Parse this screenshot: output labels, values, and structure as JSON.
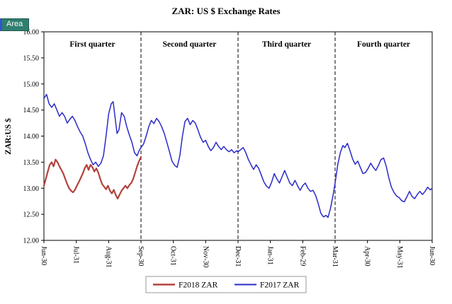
{
  "toolbar": {
    "area_label": "Area"
  },
  "chart_data": {
    "type": "line",
    "title": "ZAR:  US $ Exchange  Rates",
    "ylabel": "ZAR:US  $",
    "xlabel": "",
    "ylim": [
      12.0,
      16.0
    ],
    "xlim": [
      0,
      12
    ],
    "grid": false,
    "legend_position": "bottom-center",
    "y_tick_labels": [
      "12.00",
      "12.50",
      "13.00",
      "13.50",
      "14.00",
      "14.50",
      "15.00",
      "15.50",
      "16.00"
    ],
    "x_tick_labels": [
      "Jun-30",
      "Jul-31",
      "Aug-31",
      "Sep-30",
      "Oct-31",
      "Nov-30",
      "Dec-31",
      "Jan-31",
      "Feb-29",
      "Mar-31",
      "Apr-30",
      "May-31",
      "Jun-30"
    ],
    "quarter_dividers_at": [
      3,
      6,
      9
    ],
    "quarter_labels": [
      {
        "label": "First quarter",
        "center": 1.5
      },
      {
        "label": "Second quarter",
        "center": 4.5
      },
      {
        "label": "Third quarter",
        "center": 7.5
      },
      {
        "label": "Fourth quarter",
        "center": 10.5
      }
    ],
    "series": [
      {
        "name": "F2018 ZAR",
        "color": "#b2423c",
        "width": 2.2,
        "points": [
          [
            0,
            13.05
          ],
          [
            0.06,
            13.18
          ],
          [
            0.12,
            13.32
          ],
          [
            0.18,
            13.45
          ],
          [
            0.24,
            13.5
          ],
          [
            0.3,
            13.42
          ],
          [
            0.36,
            13.55
          ],
          [
            0.42,
            13.5
          ],
          [
            0.48,
            13.42
          ],
          [
            0.54,
            13.35
          ],
          [
            0.6,
            13.28
          ],
          [
            0.66,
            13.18
          ],
          [
            0.72,
            13.08
          ],
          [
            0.78,
            13.0
          ],
          [
            0.84,
            12.95
          ],
          [
            0.9,
            12.92
          ],
          [
            0.96,
            12.97
          ],
          [
            1.02,
            13.05
          ],
          [
            1.08,
            13.12
          ],
          [
            1.14,
            13.2
          ],
          [
            1.2,
            13.28
          ],
          [
            1.26,
            13.38
          ],
          [
            1.32,
            13.45
          ],
          [
            1.38,
            13.35
          ],
          [
            1.44,
            13.45
          ],
          [
            1.5,
            13.4
          ],
          [
            1.56,
            13.32
          ],
          [
            1.62,
            13.38
          ],
          [
            1.68,
            13.3
          ],
          [
            1.74,
            13.18
          ],
          [
            1.8,
            13.08
          ],
          [
            1.86,
            13.03
          ],
          [
            1.92,
            12.98
          ],
          [
            1.98,
            13.05
          ],
          [
            2.04,
            12.95
          ],
          [
            2.1,
            12.9
          ],
          [
            2.16,
            12.97
          ],
          [
            2.22,
            12.87
          ],
          [
            2.28,
            12.8
          ],
          [
            2.34,
            12.88
          ],
          [
            2.4,
            12.95
          ],
          [
            2.46,
            13.0
          ],
          [
            2.52,
            13.05
          ],
          [
            2.58,
            13.0
          ],
          [
            2.64,
            13.06
          ],
          [
            2.7,
            13.1
          ],
          [
            2.76,
            13.18
          ],
          [
            2.82,
            13.3
          ],
          [
            2.88,
            13.42
          ],
          [
            2.94,
            13.52
          ],
          [
            3.0,
            13.6
          ]
        ]
      },
      {
        "name": "F2017 ZAR",
        "color": "#2a2ac8",
        "width": 1.5,
        "points": [
          [
            0,
            14.72
          ],
          [
            0.08,
            14.8
          ],
          [
            0.16,
            14.62
          ],
          [
            0.24,
            14.55
          ],
          [
            0.32,
            14.62
          ],
          [
            0.4,
            14.5
          ],
          [
            0.48,
            14.38
          ],
          [
            0.56,
            14.45
          ],
          [
            0.64,
            14.38
          ],
          [
            0.72,
            14.25
          ],
          [
            0.8,
            14.32
          ],
          [
            0.88,
            14.38
          ],
          [
            0.96,
            14.3
          ],
          [
            1.04,
            14.18
          ],
          [
            1.12,
            14.08
          ],
          [
            1.2,
            14.0
          ],
          [
            1.28,
            13.85
          ],
          [
            1.36,
            13.68
          ],
          [
            1.44,
            13.55
          ],
          [
            1.52,
            13.45
          ],
          [
            1.6,
            13.5
          ],
          [
            1.68,
            13.42
          ],
          [
            1.76,
            13.48
          ],
          [
            1.84,
            13.62
          ],
          [
            1.92,
            14.0
          ],
          [
            2.0,
            14.42
          ],
          [
            2.08,
            14.62
          ],
          [
            2.14,
            14.66
          ],
          [
            2.2,
            14.35
          ],
          [
            2.26,
            14.05
          ],
          [
            2.32,
            14.12
          ],
          [
            2.4,
            14.45
          ],
          [
            2.48,
            14.38
          ],
          [
            2.56,
            14.18
          ],
          [
            2.64,
            14.02
          ],
          [
            2.72,
            13.88
          ],
          [
            2.8,
            13.68
          ],
          [
            2.88,
            13.62
          ],
          [
            2.94,
            13.72
          ],
          [
            3.0,
            13.78
          ],
          [
            3.08,
            13.85
          ],
          [
            3.16,
            14.0
          ],
          [
            3.24,
            14.18
          ],
          [
            3.32,
            14.3
          ],
          [
            3.4,
            14.24
          ],
          [
            3.48,
            14.34
          ],
          [
            3.56,
            14.28
          ],
          [
            3.64,
            14.18
          ],
          [
            3.72,
            14.05
          ],
          [
            3.8,
            13.88
          ],
          [
            3.88,
            13.7
          ],
          [
            3.96,
            13.52
          ],
          [
            4.04,
            13.44
          ],
          [
            4.12,
            13.4
          ],
          [
            4.2,
            13.62
          ],
          [
            4.28,
            14.0
          ],
          [
            4.36,
            14.28
          ],
          [
            4.44,
            14.34
          ],
          [
            4.52,
            14.22
          ],
          [
            4.6,
            14.3
          ],
          [
            4.68,
            14.25
          ],
          [
            4.76,
            14.12
          ],
          [
            4.84,
            13.98
          ],
          [
            4.92,
            13.88
          ],
          [
            5.0,
            13.92
          ],
          [
            5.08,
            13.8
          ],
          [
            5.16,
            13.72
          ],
          [
            5.24,
            13.78
          ],
          [
            5.32,
            13.88
          ],
          [
            5.4,
            13.8
          ],
          [
            5.48,
            13.74
          ],
          [
            5.56,
            13.8
          ],
          [
            5.64,
            13.74
          ],
          [
            5.72,
            13.7
          ],
          [
            5.8,
            13.74
          ],
          [
            5.88,
            13.68
          ],
          [
            5.96,
            13.72
          ],
          [
            6.0,
            13.7
          ],
          [
            6.08,
            13.74
          ],
          [
            6.16,
            13.78
          ],
          [
            6.24,
            13.68
          ],
          [
            6.32,
            13.55
          ],
          [
            6.4,
            13.45
          ],
          [
            6.48,
            13.36
          ],
          [
            6.56,
            13.45
          ],
          [
            6.64,
            13.38
          ],
          [
            6.72,
            13.25
          ],
          [
            6.8,
            13.12
          ],
          [
            6.88,
            13.04
          ],
          [
            6.96,
            13.0
          ],
          [
            7.04,
            13.12
          ],
          [
            7.12,
            13.28
          ],
          [
            7.2,
            13.18
          ],
          [
            7.28,
            13.1
          ],
          [
            7.36,
            13.22
          ],
          [
            7.44,
            13.34
          ],
          [
            7.52,
            13.22
          ],
          [
            7.6,
            13.1
          ],
          [
            7.68,
            13.05
          ],
          [
            7.76,
            13.15
          ],
          [
            7.84,
            13.05
          ],
          [
            7.92,
            12.96
          ],
          [
            8.0,
            13.05
          ],
          [
            8.08,
            13.1
          ],
          [
            8.16,
            13.0
          ],
          [
            8.24,
            12.94
          ],
          [
            8.32,
            12.96
          ],
          [
            8.4,
            12.86
          ],
          [
            8.48,
            12.7
          ],
          [
            8.56,
            12.52
          ],
          [
            8.64,
            12.45
          ],
          [
            8.72,
            12.48
          ],
          [
            8.78,
            12.44
          ],
          [
            8.86,
            12.62
          ],
          [
            8.94,
            12.88
          ],
          [
            9.0,
            13.1
          ],
          [
            9.08,
            13.45
          ],
          [
            9.16,
            13.68
          ],
          [
            9.24,
            13.82
          ],
          [
            9.3,
            13.78
          ],
          [
            9.38,
            13.86
          ],
          [
            9.46,
            13.72
          ],
          [
            9.54,
            13.56
          ],
          [
            9.62,
            13.46
          ],
          [
            9.7,
            13.52
          ],
          [
            9.78,
            13.4
          ],
          [
            9.86,
            13.28
          ],
          [
            9.94,
            13.3
          ],
          [
            10.02,
            13.38
          ],
          [
            10.1,
            13.48
          ],
          [
            10.18,
            13.4
          ],
          [
            10.26,
            13.34
          ],
          [
            10.34,
            13.44
          ],
          [
            10.42,
            13.55
          ],
          [
            10.5,
            13.58
          ],
          [
            10.58,
            13.42
          ],
          [
            10.66,
            13.2
          ],
          [
            10.74,
            13.02
          ],
          [
            10.82,
            12.92
          ],
          [
            10.9,
            12.85
          ],
          [
            10.98,
            12.82
          ],
          [
            11.06,
            12.76
          ],
          [
            11.14,
            12.74
          ],
          [
            11.22,
            12.84
          ],
          [
            11.3,
            12.94
          ],
          [
            11.38,
            12.84
          ],
          [
            11.46,
            12.8
          ],
          [
            11.54,
            12.88
          ],
          [
            11.62,
            12.94
          ],
          [
            11.7,
            12.88
          ],
          [
            11.78,
            12.94
          ],
          [
            11.86,
            13.02
          ],
          [
            11.94,
            12.97
          ],
          [
            12,
            13.0
          ]
        ]
      }
    ]
  }
}
